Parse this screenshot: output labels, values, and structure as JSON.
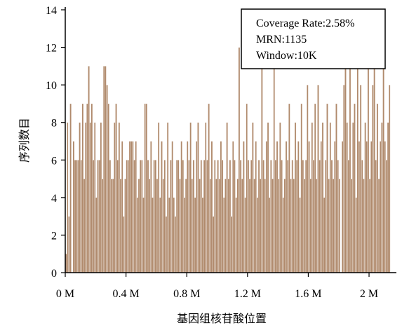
{
  "chart_data": {
    "type": "bar",
    "xlabel": "基因组核苷酸位置",
    "ylabel": "序列数目",
    "x_unit": "M",
    "xlim": [
      0,
      2.18
    ],
    "ylim": [
      0,
      14
    ],
    "x_ticks": [
      {
        "value": 0,
        "label": "0 M"
      },
      {
        "value": 0.4,
        "label": "0.4 M"
      },
      {
        "value": 0.8,
        "label": "0.8 M"
      },
      {
        "value": 1.2,
        "label": "1.2 M"
      },
      {
        "value": 1.6,
        "label": "1.6 M"
      },
      {
        "value": 2.0,
        "label": "2 M"
      }
    ],
    "y_ticks": [
      0,
      2,
      4,
      6,
      8,
      10,
      12,
      14
    ],
    "bar_color": "#b08a6c",
    "bin_width": 0.01,
    "values": [
      1,
      8,
      3,
      9,
      0,
      7,
      6,
      6,
      6,
      8,
      6,
      9,
      5,
      8,
      9,
      11,
      8,
      9,
      6,
      8,
      4,
      6,
      6,
      8,
      5,
      11,
      11,
      10,
      9,
      6,
      5,
      5,
      8,
      9,
      6,
      8,
      5,
      7,
      3,
      5,
      6,
      6,
      7,
      7,
      7,
      6,
      7,
      4,
      5,
      6,
      6,
      4,
      9,
      9,
      6,
      5,
      7,
      4,
      6,
      6,
      5,
      8,
      4,
      7,
      5,
      6,
      3,
      8,
      4,
      6,
      7,
      4,
      3,
      6,
      6,
      5,
      7,
      6,
      4,
      5,
      7,
      6,
      8,
      5,
      6,
      4,
      7,
      8,
      5,
      6,
      4,
      6,
      8,
      6,
      9,
      5,
      7,
      3,
      6,
      5,
      6,
      5,
      7,
      6,
      4,
      5,
      8,
      5,
      6,
      3,
      7,
      6,
      4,
      5,
      12,
      6,
      5,
      7,
      4,
      9,
      6,
      5,
      6,
      8,
      5,
      7,
      4,
      6,
      5,
      11,
      6,
      5,
      7,
      8,
      4,
      6,
      5,
      12,
      6,
      7,
      5,
      8,
      6,
      4,
      5,
      7,
      6,
      9,
      5,
      6,
      5,
      8,
      6,
      7,
      4,
      9,
      6,
      5,
      6,
      10,
      7,
      5,
      8,
      6,
      9,
      5,
      10,
      6,
      7,
      8,
      4,
      6,
      9,
      5,
      8,
      6,
      5,
      7,
      9,
      6,
      5,
      0,
      7,
      10,
      12,
      8,
      6,
      13,
      5,
      8,
      9,
      4,
      12,
      7,
      10,
      6,
      5,
      8,
      7,
      11,
      5,
      7,
      10,
      13,
      6,
      9,
      5,
      7,
      8,
      12,
      7,
      6,
      8,
      10
    ]
  },
  "legend": {
    "lines": [
      "Coverage Rate:2.58%",
      "MRN:1135",
      "Window:10K"
    ]
  }
}
